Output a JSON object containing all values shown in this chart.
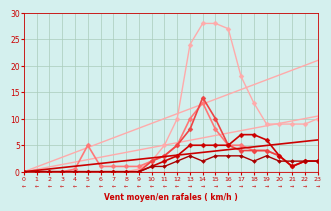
{
  "background_color": "#d4f0ee",
  "grid_color": "#aaccbb",
  "xlabel": "Vent moyen/en rafales ( km/h )",
  "ylabel_ticks": [
    0,
    5,
    10,
    15,
    20,
    25,
    30
  ],
  "xlim": [
    0,
    23
  ],
  "ylim": [
    0,
    30
  ],
  "xticks": [
    0,
    1,
    2,
    3,
    4,
    5,
    6,
    7,
    8,
    9,
    10,
    11,
    12,
    13,
    14,
    15,
    16,
    17,
    18,
    19,
    20,
    21,
    22,
    23
  ],
  "lines": [
    {
      "comment": "lightest pink - broad peaked curve, highest peak ~28 at x=14-15",
      "x": [
        0,
        1,
        2,
        3,
        4,
        5,
        6,
        7,
        8,
        9,
        10,
        11,
        12,
        13,
        14,
        15,
        16,
        17,
        18,
        19,
        20,
        21,
        22,
        23
      ],
      "y": [
        0,
        0,
        0,
        0,
        0,
        0,
        0,
        0,
        0,
        0.5,
        2,
        5,
        10,
        24,
        28,
        28,
        27,
        18,
        13,
        9,
        9,
        9,
        9,
        10
      ],
      "color": "#ffaaaa",
      "lw": 1.0,
      "marker": "D",
      "ms": 2.5
    },
    {
      "comment": "light pink diagonal line from bottom-left to upper-right ~21 at x=23",
      "x": [
        0,
        23
      ],
      "y": [
        0,
        21
      ],
      "color": "#ffaaaa",
      "lw": 1.0,
      "marker": null,
      "ms": 0
    },
    {
      "comment": "light pink lower diagonal line, ~10 at x=23",
      "x": [
        0,
        23
      ],
      "y": [
        0,
        10.5
      ],
      "color": "#ffaaaa",
      "lw": 1.0,
      "marker": null,
      "ms": 0
    },
    {
      "comment": "medium pink peaked curve, peak ~13 at x=14, with markers",
      "x": [
        0,
        1,
        2,
        3,
        4,
        5,
        6,
        7,
        8,
        9,
        10,
        11,
        12,
        13,
        14,
        15,
        16,
        17,
        18,
        19,
        20,
        21,
        22,
        23
      ],
      "y": [
        0,
        0,
        0,
        0,
        0.5,
        5,
        1,
        1,
        1,
        1,
        2,
        3,
        5,
        10,
        13,
        8,
        5,
        5,
        4,
        4,
        3,
        1,
        2,
        2
      ],
      "color": "#ff7777",
      "lw": 1.2,
      "marker": "D",
      "ms": 2.5
    },
    {
      "comment": "medium-dark red peaked curve higher, peak at x=14",
      "x": [
        0,
        1,
        2,
        3,
        4,
        5,
        6,
        7,
        8,
        9,
        10,
        11,
        12,
        13,
        14,
        15,
        16,
        17,
        18,
        19,
        20,
        21,
        22,
        23
      ],
      "y": [
        0,
        0,
        0,
        0,
        0,
        0,
        0,
        0,
        0,
        0,
        2,
        3,
        5,
        8,
        14,
        10,
        5,
        4,
        4,
        4,
        3,
        1,
        2,
        2
      ],
      "color": "#ee4444",
      "lw": 1.2,
      "marker": "D",
      "ms": 2.5
    },
    {
      "comment": "dark red diagonal line going to ~6 at x=23",
      "x": [
        0,
        23
      ],
      "y": [
        0,
        6
      ],
      "color": "#cc0000",
      "lw": 1.2,
      "marker": null,
      "ms": 0
    },
    {
      "comment": "dark red low flat line with markers",
      "x": [
        0,
        1,
        2,
        3,
        4,
        5,
        6,
        7,
        8,
        9,
        10,
        11,
        12,
        13,
        14,
        15,
        16,
        17,
        18,
        19,
        20,
        21,
        22,
        23
      ],
      "y": [
        0,
        0,
        0,
        0,
        0,
        0,
        0,
        0,
        0,
        0,
        1,
        2,
        3,
        5,
        5,
        5,
        5,
        7,
        7,
        6,
        3,
        1,
        2,
        2
      ],
      "color": "#cc0000",
      "lw": 1.2,
      "marker": "D",
      "ms": 2.5
    },
    {
      "comment": "darkest red very low flat line with markers",
      "x": [
        0,
        1,
        2,
        3,
        4,
        5,
        6,
        7,
        8,
        9,
        10,
        11,
        12,
        13,
        14,
        15,
        16,
        17,
        18,
        19,
        20,
        21,
        22,
        23
      ],
      "y": [
        0,
        0,
        0,
        0,
        0,
        0,
        0,
        0,
        0,
        0,
        1,
        1,
        2,
        3,
        2,
        3,
        3,
        3,
        2,
        3,
        2,
        2,
        2,
        2
      ],
      "color": "#aa0000",
      "lw": 1.0,
      "marker": "D",
      "ms": 2.0
    }
  ],
  "arrow_dirs": [
    -1,
    -1,
    -1,
    -1,
    -1,
    -1,
    -1,
    -1,
    -1,
    -1,
    -1,
    -1,
    -1,
    1,
    1,
    1,
    1,
    1,
    1,
    1,
    1,
    1,
    1,
    1
  ],
  "font_color": "#cc0000"
}
